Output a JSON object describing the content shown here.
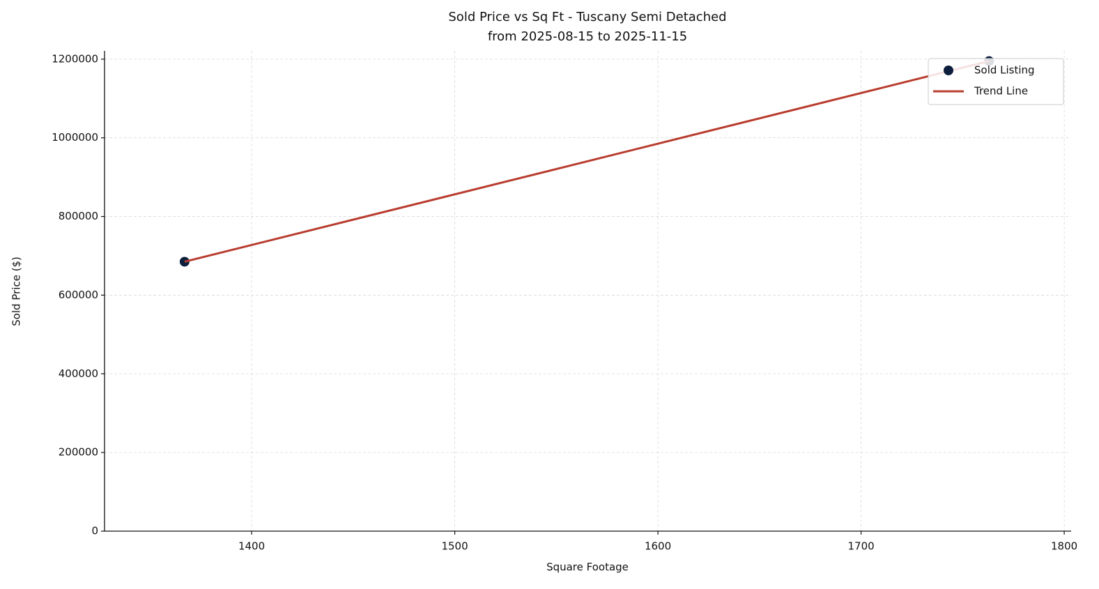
{
  "chart_data": {
    "type": "scatter",
    "title": "Sold Price vs Sq Ft - Tuscany Semi Detached",
    "subtitle": "from 2025-08-15 to 2025-11-15",
    "x_label": "Square Footage",
    "y_label": "Sold Price ($)",
    "series": [
      {
        "name": "Sold Listing",
        "type": "scatter",
        "color": "#0d1f3c",
        "x": [
          1367,
          1763
        ],
        "values": [
          685000,
          1195000
        ]
      },
      {
        "name": "Trend Line",
        "type": "line",
        "color": "#b83c2e",
        "x": [
          1367,
          1763
        ],
        "values": [
          685000,
          1195000
        ]
      }
    ],
    "xlim": [
      1327.6,
      1803.4
    ],
    "ylim": [
      0,
      1221000
    ],
    "xticks": [
      1400,
      1500,
      1600,
      1700,
      1800
    ],
    "yticks": [
      0,
      200000,
      400000,
      600000,
      800000,
      1000000,
      1200000
    ],
    "grid": true,
    "legend": "upper right"
  }
}
